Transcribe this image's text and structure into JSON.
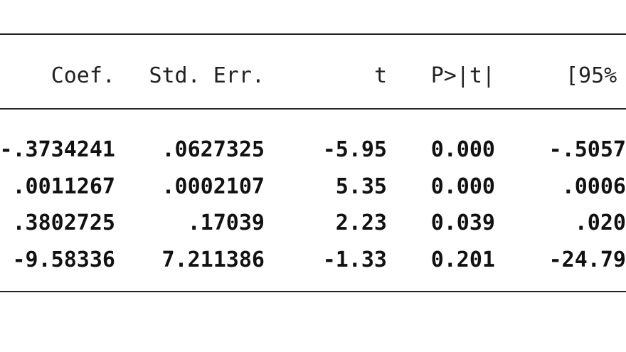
{
  "columns": [
    "Coef.",
    "Std. Err.",
    "t",
    "P>|t|",
    "[95%"
  ],
  "rows": [
    [
      "-.3734241",
      ".0627325",
      "-5.95",
      "0.000",
      "-.5057"
    ],
    [
      ".0011267",
      ".0002107",
      "5.35",
      "0.000",
      ".0006"
    ],
    [
      ".3802725",
      ".17039",
      "2.23",
      "0.039",
      ".020"
    ],
    [
      "-9.58336",
      "7.211386",
      "-1.33",
      "0.201",
      "-24.79"
    ]
  ]
}
